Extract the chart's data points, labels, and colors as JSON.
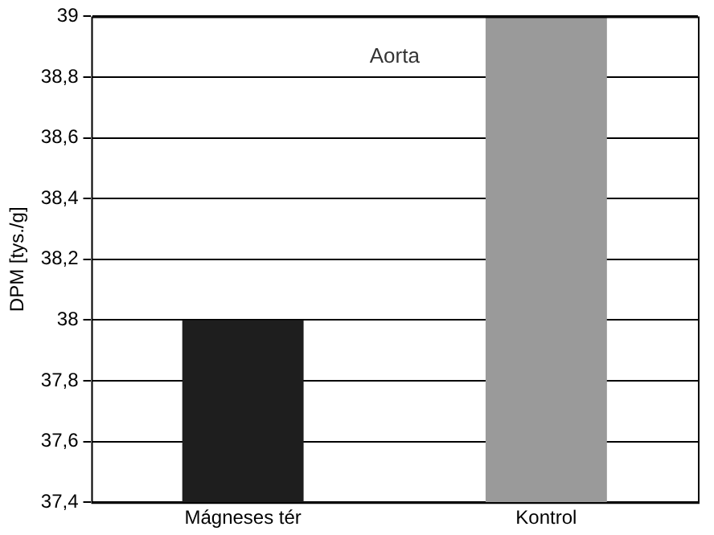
{
  "chart_data": {
    "type": "bar",
    "ylabel": "DPM [tys./g]",
    "categories": [
      "Mágneses tér",
      "Kontrol"
    ],
    "values": [
      38,
      39
    ],
    "colors": [
      "#1e1e1e",
      "#9a9a9a"
    ],
    "ylim": [
      37.4,
      39
    ],
    "yticks": [
      {
        "value": 37.4,
        "label": "37,4"
      },
      {
        "value": 37.6,
        "label": "37,6"
      },
      {
        "value": 37.8,
        "label": "37,8"
      },
      38,
      {
        "value": 38.2,
        "label": "38,2"
      },
      {
        "value": 38.4,
        "label": "38,4"
      },
      {
        "value": 38.6,
        "label": "38,6"
      },
      {
        "value": 38.8,
        "label": "38,8"
      },
      39
    ],
    "grid": "y",
    "legend": false,
    "annotations": [
      "Aorta"
    ]
  }
}
